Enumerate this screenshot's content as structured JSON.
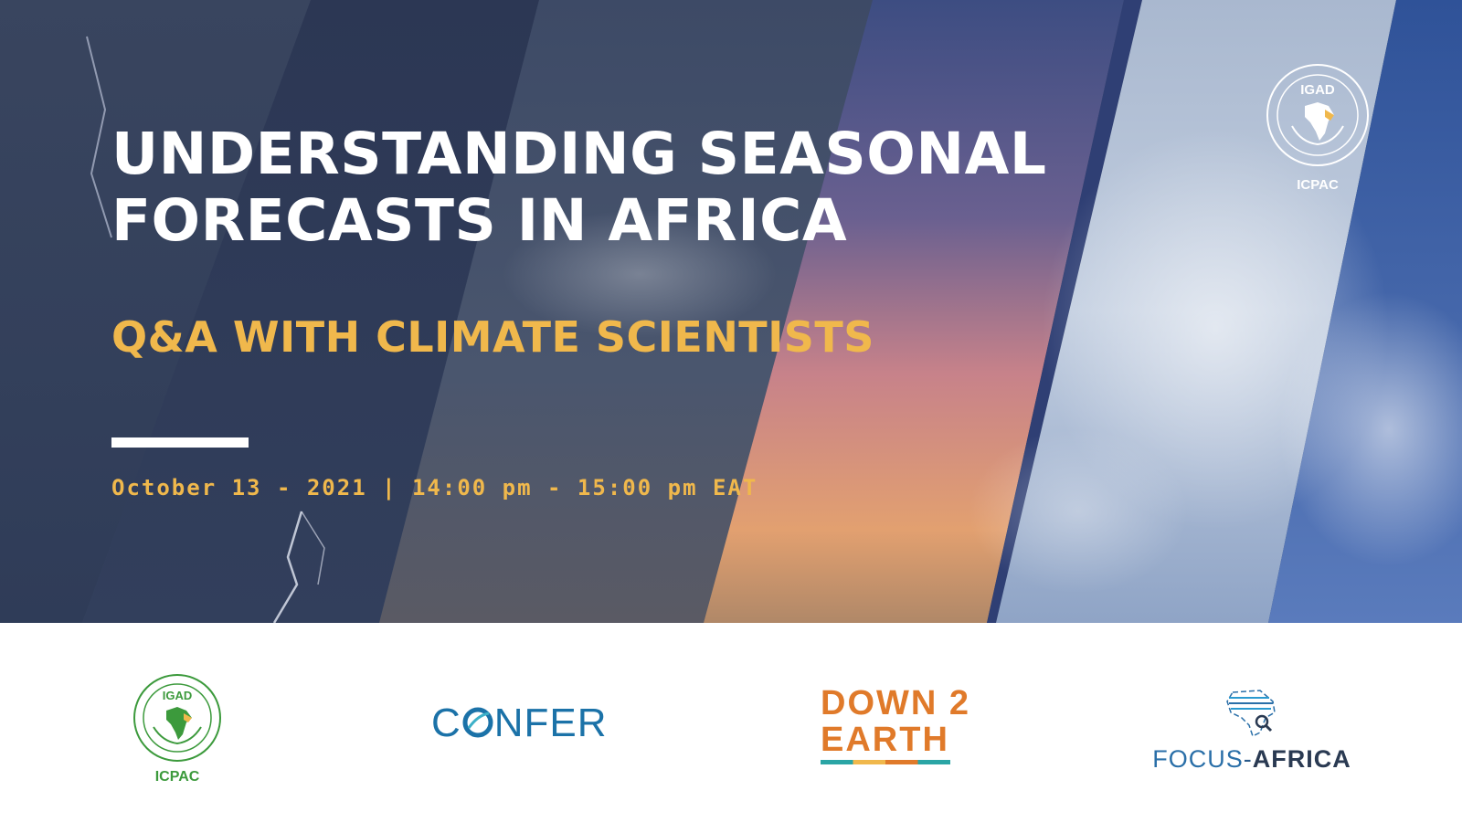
{
  "banner": {
    "title_line1": "UNDERSTANDING SEASONAL",
    "title_line2": "FORECASTS IN AFRICA",
    "subtitle": "Q&A WITH CLIMATE SCIENTISTS",
    "datetime": "October 13 - 2021 | 14:00 pm - 15:00 pm EAT",
    "top_logo": {
      "name": "IGAD",
      "label": "ICPAC"
    }
  },
  "partners": {
    "igad": {
      "name": "IGAD",
      "label": "ICPAC"
    },
    "confer": {
      "prefix": "C",
      "suffix": "NFER"
    },
    "down2earth": {
      "line1": "DOWN 2",
      "line2_a": "2",
      "line2_b": "EARTH"
    },
    "focus_africa": {
      "part1": "FOCUS",
      "dash": "-",
      "part2": "AFRICA"
    }
  },
  "colors": {
    "accent": "#f0b84c",
    "title": "#ffffff",
    "icpac_green": "#3c9a3c",
    "confer_blue": "#1b72a8",
    "d2e_orange": "#e07a2a"
  },
  "icons": [
    "igad-emblem-icon",
    "africa-map-icon",
    "magnifier-icon"
  ]
}
